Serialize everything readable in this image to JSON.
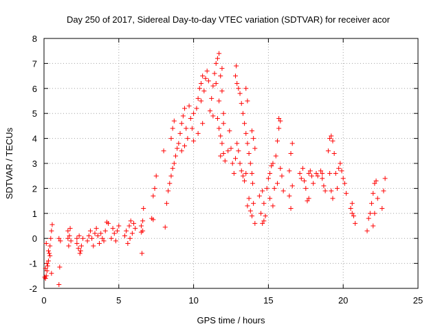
{
  "chart_data": {
    "type": "scatter",
    "title": "Day 250 of 2017, Sidereal Day-to-day VTEC variation (SDTVAR) for receiver acor",
    "xlabel": "GPS time / hours",
    "ylabel": "SDTVAR / TECUs",
    "xlim": [
      0,
      25
    ],
    "ylim": [
      -2,
      8
    ],
    "xticks": [
      "0",
      "5",
      "10",
      "15",
      "20",
      "25"
    ],
    "yticks": [
      "-2",
      "-1",
      "0",
      "1",
      "2",
      "3",
      "4",
      "5",
      "6",
      "7",
      "8"
    ],
    "grid": true,
    "marker": "+",
    "color": "#ff0000",
    "series": [
      {
        "name": "SDTVAR",
        "points": [
          [
            0.05,
            -1.55
          ],
          [
            0.1,
            -1.6
          ],
          [
            0.15,
            -1.5
          ],
          [
            0.2,
            -1.3
          ],
          [
            0.25,
            -1.1
          ],
          [
            0.3,
            -0.9
          ],
          [
            0.35,
            -0.6
          ],
          [
            0.4,
            -0.3
          ],
          [
            0.45,
            0.0
          ],
          [
            0.5,
            0.3
          ],
          [
            0.55,
            0.55
          ],
          [
            0.1,
            -1.2
          ],
          [
            0.2,
            -1.0
          ],
          [
            0.3,
            -0.5
          ],
          [
            0.4,
            -0.7
          ],
          [
            0.5,
            -1.4
          ],
          [
            0.15,
            -0.2
          ],
          [
            1.0,
            -1.85
          ],
          [
            1.05,
            -1.15
          ],
          [
            1.0,
            0.0
          ],
          [
            1.1,
            -0.1
          ],
          [
            1.6,
            0.3
          ],
          [
            1.7,
            0.1
          ],
          [
            1.8,
            -0.1
          ],
          [
            1.65,
            -0.3
          ],
          [
            1.75,
            0.4
          ],
          [
            1.6,
            0.0
          ],
          [
            2.2,
            -0.2
          ],
          [
            2.3,
            -0.4
          ],
          [
            2.4,
            -0.6
          ],
          [
            2.5,
            -0.3
          ],
          [
            2.2,
            0.0
          ],
          [
            2.35,
            0.1
          ],
          [
            2.45,
            -0.5
          ],
          [
            2.6,
            0.0
          ],
          [
            2.9,
            -0.1
          ],
          [
            3.0,
            0.1
          ],
          [
            3.1,
            0.3
          ],
          [
            3.2,
            0.0
          ],
          [
            3.3,
            -0.3
          ],
          [
            3.4,
            0.2
          ],
          [
            3.5,
            0.4
          ],
          [
            3.6,
            0.1
          ],
          [
            3.7,
            -0.2
          ],
          [
            3.8,
            0.2
          ],
          [
            3.9,
            0.0
          ],
          [
            4.0,
            -0.1
          ],
          [
            4.1,
            0.3
          ],
          [
            4.2,
            0.65
          ],
          [
            4.3,
            0.6
          ],
          [
            4.5,
            0.0
          ],
          [
            4.6,
            0.4
          ],
          [
            4.7,
            0.2
          ],
          [
            4.8,
            -0.1
          ],
          [
            4.9,
            0.3
          ],
          [
            5.0,
            0.5
          ],
          [
            5.4,
            0.1
          ],
          [
            5.5,
            0.3
          ],
          [
            5.6,
            -0.2
          ],
          [
            5.7,
            0.5
          ],
          [
            5.8,
            0.7
          ],
          [
            5.9,
            0.2
          ],
          [
            6.0,
            0.6
          ],
          [
            6.1,
            0.4
          ],
          [
            5.75,
            0.0
          ],
          [
            6.5,
            0.25
          ],
          [
            6.6,
            0.3
          ],
          [
            6.5,
            0.5
          ],
          [
            6.6,
            0.7
          ],
          [
            6.55,
            -0.6
          ],
          [
            6.65,
            1.2
          ],
          [
            7.2,
            0.8
          ],
          [
            7.3,
            1.7
          ],
          [
            7.4,
            2.0
          ],
          [
            7.5,
            2.5
          ],
          [
            7.3,
            0.75
          ],
          [
            8.1,
            0.45
          ],
          [
            8.2,
            1.4
          ],
          [
            8.3,
            1.9
          ],
          [
            8.4,
            2.2
          ],
          [
            8.5,
            2.5
          ],
          [
            8.6,
            2.8
          ],
          [
            8.7,
            3.0
          ],
          [
            8.8,
            3.3
          ],
          [
            8.9,
            3.6
          ],
          [
            8.5,
            4.0
          ],
          [
            8.6,
            4.4
          ],
          [
            8.7,
            4.7
          ],
          [
            9.0,
            3.8
          ],
          [
            9.1,
            4.2
          ],
          [
            9.2,
            4.6
          ],
          [
            9.3,
            4.9
          ],
          [
            9.4,
            5.2
          ],
          [
            9.5,
            4.4
          ],
          [
            9.6,
            4.0
          ],
          [
            9.7,
            5.3
          ],
          [
            9.8,
            4.8
          ],
          [
            9.9,
            4.4
          ],
          [
            10.0,
            3.9
          ],
          [
            9.2,
            3.5
          ],
          [
            9.4,
            3.7
          ],
          [
            10.0,
            5.0
          ],
          [
            8.0,
            3.5
          ],
          [
            10.2,
            5.2
          ],
          [
            10.3,
            5.6
          ],
          [
            10.4,
            6.0
          ],
          [
            10.5,
            5.5
          ],
          [
            10.6,
            4.6
          ],
          [
            10.7,
            5.9
          ],
          [
            10.8,
            6.4
          ],
          [
            10.9,
            6.7
          ],
          [
            11.0,
            6.3
          ],
          [
            10.6,
            6.5
          ],
          [
            10.3,
            4.2
          ],
          [
            10.5,
            6.2
          ],
          [
            11.1,
            5.1
          ],
          [
            11.2,
            5.6
          ],
          [
            11.3,
            6.1
          ],
          [
            11.4,
            6.6
          ],
          [
            11.5,
            7.0
          ],
          [
            11.6,
            7.2
          ],
          [
            11.7,
            7.4
          ],
          [
            11.8,
            6.5
          ],
          [
            11.9,
            5.9
          ],
          [
            12.0,
            5.0
          ],
          [
            11.5,
            6.2
          ],
          [
            11.7,
            5.5
          ],
          [
            11.9,
            6.8
          ],
          [
            11.3,
            4.9
          ],
          [
            11.6,
            4.8
          ],
          [
            11.7,
            4.4
          ],
          [
            11.8,
            4.1
          ],
          [
            11.9,
            3.8
          ],
          [
            12.0,
            3.4
          ],
          [
            12.1,
            3.1
          ],
          [
            12.0,
            4.6
          ],
          [
            11.8,
            3.3
          ],
          [
            12.3,
            3.5
          ],
          [
            12.4,
            4.3
          ],
          [
            12.5,
            3.6
          ],
          [
            12.6,
            3.0
          ],
          [
            12.7,
            2.6
          ],
          [
            12.8,
            3.2
          ],
          [
            12.9,
            3.8
          ],
          [
            13.0,
            3.5
          ],
          [
            13.1,
            3.0
          ],
          [
            13.2,
            2.7
          ],
          [
            13.3,
            2.5
          ],
          [
            13.4,
            2.3
          ],
          [
            13.5,
            2.6
          ],
          [
            12.8,
            6.5
          ],
          [
            12.9,
            6.2
          ],
          [
            13.0,
            6.0
          ],
          [
            13.1,
            5.8
          ],
          [
            13.2,
            5.4
          ],
          [
            13.3,
            5.0
          ],
          [
            13.4,
            4.6
          ],
          [
            13.5,
            4.2
          ],
          [
            13.6,
            3.8
          ],
          [
            13.7,
            3.4
          ],
          [
            13.8,
            3.0
          ],
          [
            13.9,
            2.6
          ],
          [
            12.85,
            6.9
          ],
          [
            13.5,
            6.0
          ],
          [
            13.6,
            5.5
          ],
          [
            13.9,
            4.3
          ],
          [
            14.0,
            4.0
          ],
          [
            14.1,
            3.6
          ],
          [
            13.95,
            2.2
          ],
          [
            13.6,
            1.3
          ],
          [
            13.7,
            1.6
          ],
          [
            13.8,
            1.1
          ],
          [
            13.9,
            0.9
          ],
          [
            14.0,
            1.4
          ],
          [
            14.1,
            0.6
          ],
          [
            14.4,
            1.7
          ],
          [
            14.5,
            1.0
          ],
          [
            14.6,
            0.6
          ],
          [
            14.7,
            1.4
          ],
          [
            14.8,
            0.9
          ],
          [
            14.9,
            2.0
          ],
          [
            15.0,
            2.4
          ],
          [
            15.1,
            1.6
          ],
          [
            15.2,
            2.9
          ],
          [
            15.3,
            3.0
          ],
          [
            15.4,
            2.0
          ],
          [
            14.7,
            0.7
          ],
          [
            14.6,
            1.9
          ],
          [
            15.1,
            2.6
          ],
          [
            15.3,
            1.3
          ],
          [
            15.5,
            3.3
          ],
          [
            15.6,
            3.9
          ],
          [
            15.7,
            4.4
          ],
          [
            15.8,
            4.7
          ],
          [
            15.9,
            2.5
          ],
          [
            16.0,
            1.9
          ],
          [
            15.6,
            2.2
          ],
          [
            15.8,
            2.8
          ],
          [
            15.7,
            4.8
          ],
          [
            16.4,
            2.7
          ],
          [
            16.5,
            3.4
          ],
          [
            16.6,
            3.8
          ],
          [
            16.4,
            1.7
          ],
          [
            16.5,
            1.2
          ],
          [
            16.6,
            2.1
          ],
          [
            17.1,
            2.6
          ],
          [
            17.2,
            2.4
          ],
          [
            17.3,
            2.8
          ],
          [
            17.4,
            2.3
          ],
          [
            17.5,
            2.0
          ],
          [
            17.6,
            1.5
          ],
          [
            17.7,
            2.6
          ],
          [
            17.8,
            2.7
          ],
          [
            17.9,
            2.5
          ],
          [
            18.0,
            2.2
          ],
          [
            17.7,
            1.6
          ],
          [
            18.2,
            2.6
          ],
          [
            18.3,
            2.5
          ],
          [
            18.5,
            2.7
          ],
          [
            18.6,
            2.4
          ],
          [
            18.7,
            2.1
          ],
          [
            18.8,
            1.9
          ],
          [
            18.6,
            2.6
          ],
          [
            19.0,
            3.5
          ],
          [
            19.1,
            4.0
          ],
          [
            19.2,
            4.1
          ],
          [
            19.3,
            3.9
          ],
          [
            19.4,
            3.4
          ],
          [
            19.5,
            2.6
          ],
          [
            19.6,
            2.0
          ],
          [
            19.7,
            2.8
          ],
          [
            19.8,
            3.0
          ],
          [
            19.9,
            2.7
          ],
          [
            20.0,
            2.4
          ],
          [
            20.1,
            2.2
          ],
          [
            20.2,
            1.8
          ],
          [
            19.1,
            2.6
          ],
          [
            19.2,
            1.9
          ],
          [
            19.3,
            1.6
          ],
          [
            20.5,
            1.2
          ],
          [
            20.6,
            1.4
          ],
          [
            20.7,
            0.9
          ],
          [
            20.8,
            0.6
          ],
          [
            20.6,
            1.0
          ],
          [
            21.6,
            0.3
          ],
          [
            21.7,
            0.8
          ],
          [
            21.8,
            1.0
          ],
          [
            21.9,
            1.4
          ],
          [
            22.0,
            1.8
          ],
          [
            22.1,
            2.2
          ],
          [
            22.2,
            2.3
          ],
          [
            22.3,
            1.6
          ],
          [
            22.0,
            0.5
          ],
          [
            22.1,
            1.0
          ],
          [
            22.6,
            1.2
          ],
          [
            22.7,
            1.9
          ],
          [
            22.8,
            2.4
          ]
        ]
      }
    ]
  }
}
